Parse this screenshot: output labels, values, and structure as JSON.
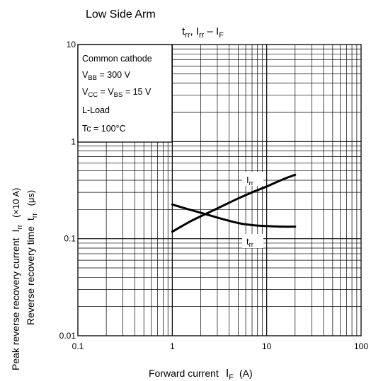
{
  "header": {
    "arm_label": "Low Side Arm"
  },
  "chart_data": {
    "type": "line",
    "title_parts": {
      "t": "t",
      "t_sub": "rr",
      "sep": ", ",
      "i": "I",
      "i_sub": "rr",
      "dash": " – ",
      "f": "I",
      "f_sub": "F"
    },
    "x_scale": "log",
    "y_scale": "log",
    "xlim": [
      0.1,
      100
    ],
    "ylim": [
      0.01,
      10
    ],
    "x_ticks": [
      {
        "value": 0.1,
        "label": "0.1"
      },
      {
        "value": 1,
        "label": "1"
      },
      {
        "value": 10,
        "label": "10"
      },
      {
        "value": 100,
        "label": "100"
      }
    ],
    "y_ticks": [
      {
        "value": 0.01,
        "label": "0.01"
      },
      {
        "value": 0.1,
        "label": "0.1"
      },
      {
        "value": 1,
        "label": "1"
      },
      {
        "value": 10,
        "label": "10"
      }
    ],
    "xlabel": {
      "main": "Forward current",
      "sym": "I",
      "sub": "F",
      "unit": "(A)"
    },
    "ylabel_line1": {
      "main": "Peak reverse recovery current",
      "sym": "I",
      "sub": "rr",
      "unit": "(×10 A)"
    },
    "ylabel_line2": {
      "main": "Reverse recovery time",
      "sym": "t",
      "sub": "rr",
      "unit": "(μs)"
    },
    "grid": true,
    "conditions": [
      {
        "text": "Common cathode"
      },
      {
        "pre": "V",
        "sub": "BB",
        "post": " = 300 V"
      },
      {
        "pre": "V",
        "sub": "CC",
        "mid": " = V",
        "sub2": "BS",
        "post": " = 15 V"
      },
      {
        "text": "L-Load"
      },
      {
        "text": "Tc = 100°C"
      }
    ],
    "series": [
      {
        "name": "Irr",
        "label_sym": "I",
        "label_sub": "rr",
        "x": [
          1,
          1.5,
          2,
          3,
          5,
          7,
          10,
          15,
          20
        ],
        "y": [
          0.118,
          0.148,
          0.17,
          0.205,
          0.26,
          0.3,
          0.345,
          0.41,
          0.455
        ]
      },
      {
        "name": "trr",
        "label_sym": "t",
        "label_sub": "rr",
        "x": [
          1,
          1.5,
          2,
          3,
          5,
          7,
          10,
          15,
          20
        ],
        "y": [
          0.225,
          0.2,
          0.185,
          0.165,
          0.145,
          0.138,
          0.135,
          0.133,
          0.133
        ]
      }
    ]
  }
}
